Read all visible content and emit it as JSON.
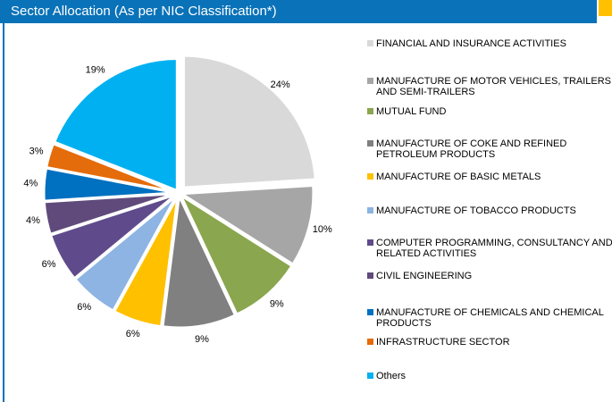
{
  "chart_data": {
    "type": "pie",
    "title": "Sector Allocation (As per NIC Classification*)",
    "categories": [
      "FINANCIAL AND INSURANCE ACTIVITIES",
      "MANUFACTURE OF MOTOR VEHICLES, TRAILERS AND SEMI-TRAILERS",
      "MUTUAL FUND",
      "MANUFACTURE OF COKE AND REFINED PETROLEUM PRODUCTS",
      "MANUFACTURE OF BASIC METALS",
      "MANUFACTURE OF TOBACCO PRODUCTS",
      "COMPUTER PROGRAMMING, CONSULTANCY AND RELATED ACTIVITIES",
      "CIVIL ENGINEERING",
      "MANUFACTURE OF CHEMICALS AND CHEMICAL PRODUCTS",
      "INFRASTRUCTURE SECTOR",
      "Others"
    ],
    "values": [
      24,
      10,
      9,
      9,
      6,
      6,
      6,
      4,
      4,
      3,
      19
    ],
    "value_labels": [
      "24%",
      "10%",
      "9%",
      "9%",
      "6%",
      "6%",
      "6%",
      "4%",
      "4%",
      "3%",
      "19%"
    ],
    "colors": [
      "#d9d9d9",
      "#a6a6a6",
      "#8aa64e",
      "#808080",
      "#ffc000",
      "#8db4e2",
      "#5f4b8b",
      "#604a7b",
      "#0070c0",
      "#e46c0a",
      "#00b0f0"
    ],
    "legend": "right"
  }
}
